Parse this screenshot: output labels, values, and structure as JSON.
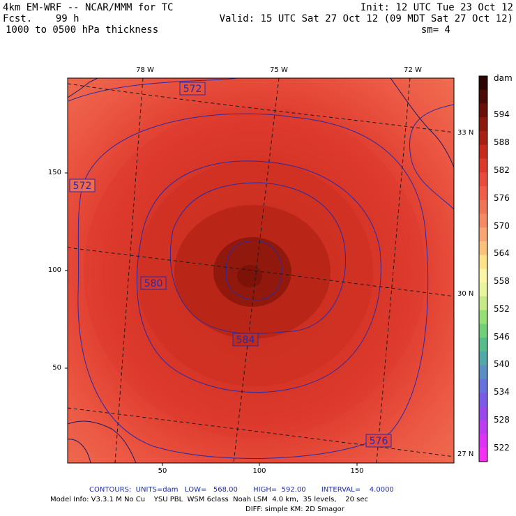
{
  "header": {
    "model": "4km EM-WRF -- NCAR/MMM for TC",
    "forecast": "Fcst.    99 h",
    "field": "1000 to 0500 hPa thickness",
    "init": "Init: 12 UTC Tue 23 Oct 12",
    "valid": "Valid: 15 UTC Sat 27 Oct 12 (09 MDT Sat 27 Oct 12)",
    "smoothing": "sm= 4"
  },
  "axes": {
    "x_ticks": [
      "50",
      "100",
      "150"
    ],
    "y_ticks": [
      "150",
      "100",
      "50"
    ],
    "longitudes": [
      "78 W",
      "75 W",
      "72 W"
    ],
    "latitudes": [
      "33 N",
      "30 N",
      "27 N"
    ]
  },
  "contour_labels": [
    "572",
    "572",
    "580",
    "584",
    "576"
  ],
  "colorbar": {
    "unit": "dam",
    "levels": [
      "594",
      "588",
      "582",
      "576",
      "570",
      "564",
      "558",
      "552",
      "546",
      "540",
      "534",
      "528",
      "522"
    ],
    "colors": [
      "#2d0404",
      "#4a0a05",
      "#6a1008",
      "#8b1a0d",
      "#a81f13",
      "#c52a1c",
      "#dc3a2b",
      "#e84c3c",
      "#ee5e48",
      "#f07456",
      "#f48a64",
      "#f7a572",
      "#fbc27c",
      "#fde28a",
      "#fbf6a6",
      "#e8f59c",
      "#c6ea86",
      "#96df74",
      "#6fd078",
      "#56bd8a",
      "#52a8a6",
      "#5a8fc4",
      "#6673dc",
      "#7b5ae6",
      "#9a48ec",
      "#bd3cef",
      "#dd33f2",
      "#f431f3"
    ]
  },
  "footer": {
    "contours": "CONTOURS:  UNITS=dam   LOW=   568.00       HIGH=  592.00       INTERVAL=    4.0000",
    "model_info": "Model Info: V3.3.1 M No Cu    YSU PBL  WSM 6class  Noah LSM  4.0 km,  35 levels,    20 sec",
    "diffusion": "DIFF: simple KM: 2D Smagor"
  }
}
